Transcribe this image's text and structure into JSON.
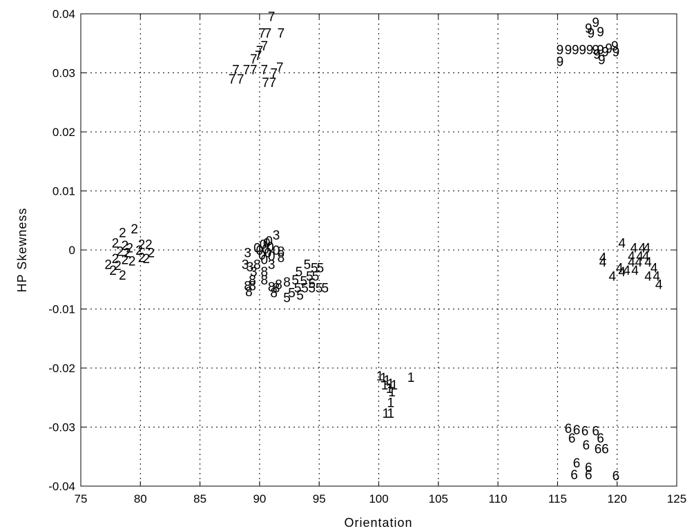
{
  "chart_data": {
    "type": "scatter",
    "title": "",
    "xlabel": "Orientation",
    "ylabel": "HP Skewness",
    "xlim": [
      75,
      125
    ],
    "ylim": [
      -0.04,
      0.04
    ],
    "xticks": [
      "75",
      "80",
      "85",
      "90",
      "95",
      "100",
      "105",
      "110",
      "115",
      "120",
      "125"
    ],
    "yticks": [
      "-0.04",
      "-0.03",
      "-0.02",
      "-0.01",
      "0",
      "0.01",
      "0.02",
      "0.03",
      "0.04"
    ],
    "grid": true,
    "marker": "class digit label",
    "series": [
      {
        "name": "0",
        "points": [
          [
            90.0,
            0.0
          ],
          [
            90.3,
            0.001
          ],
          [
            90.6,
            0.0012
          ],
          [
            90.9,
            0.0006
          ],
          [
            91.4,
            0.0
          ],
          [
            90.2,
            -0.0008
          ],
          [
            90.7,
            -0.0004
          ],
          [
            89.8,
            0.0004
          ],
          [
            90.5,
            0.0002
          ],
          [
            91.0,
            -0.001
          ],
          [
            90.4,
            -0.0016
          ],
          [
            90.8,
            0.0016
          ]
        ]
      },
      {
        "name": "1",
        "points": [
          [
            100.1,
            -0.0213
          ],
          [
            100.4,
            -0.0216
          ],
          [
            100.7,
            -0.022
          ],
          [
            101.0,
            -0.0226
          ],
          [
            100.5,
            -0.0228
          ],
          [
            100.9,
            -0.0234
          ],
          [
            101.1,
            -0.024
          ],
          [
            101.3,
            -0.0228
          ],
          [
            102.7,
            -0.0215
          ],
          [
            101.0,
            -0.0258
          ],
          [
            100.6,
            -0.0276
          ],
          [
            101.0,
            -0.0276
          ]
        ]
      },
      {
        "name": "2",
        "points": [
          [
            78.5,
            0.003
          ],
          [
            79.5,
            0.0036
          ],
          [
            77.9,
            0.0012
          ],
          [
            78.7,
            0.0008
          ],
          [
            79.1,
            0.0004
          ],
          [
            80.1,
            0.001
          ],
          [
            80.7,
            0.001
          ],
          [
            78.3,
            -0.0002
          ],
          [
            78.9,
            -0.0004
          ],
          [
            79.9,
            0.0
          ],
          [
            80.9,
            -0.0004
          ],
          [
            77.9,
            -0.0014
          ],
          [
            78.7,
            -0.0016
          ],
          [
            79.3,
            -0.0018
          ],
          [
            77.3,
            -0.0024
          ],
          [
            78.1,
            -0.0026
          ],
          [
            80.5,
            -0.0014
          ],
          [
            77.7,
            -0.0034
          ],
          [
            78.5,
            -0.0042
          ],
          [
            80.1,
            -0.0012
          ]
        ]
      },
      {
        "name": "3",
        "points": [
          [
            91.4,
            0.0026
          ],
          [
            89.0,
            -0.0004
          ],
          [
            88.8,
            -0.0024
          ],
          [
            89.2,
            -0.0028
          ],
          [
            91.0,
            -0.0024
          ],
          [
            89.5,
            -0.0036
          ]
        ]
      },
      {
        "name": "4",
        "points": [
          [
            120.4,
            0.0012
          ],
          [
            121.4,
            0.0004
          ],
          [
            122.1,
            0.0004
          ],
          [
            122.5,
            0.0004
          ],
          [
            118.8,
            -0.0012
          ],
          [
            118.8,
            -0.002
          ],
          [
            121.2,
            -0.001
          ],
          [
            121.9,
            -0.001
          ],
          [
            122.4,
            -0.001
          ],
          [
            121.2,
            -0.002
          ],
          [
            121.8,
            -0.002
          ],
          [
            122.6,
            -0.002
          ],
          [
            120.2,
            -0.003
          ],
          [
            120.8,
            -0.0034
          ],
          [
            121.5,
            -0.0034
          ],
          [
            123.1,
            -0.003
          ],
          [
            119.6,
            -0.0044
          ],
          [
            120.4,
            -0.0036
          ],
          [
            122.6,
            -0.0044
          ],
          [
            123.3,
            -0.0044
          ],
          [
            123.5,
            -0.0058
          ]
        ]
      },
      {
        "name": "5",
        "points": [
          [
            94.0,
            -0.0024
          ],
          [
            94.6,
            -0.003
          ],
          [
            95.1,
            -0.003
          ],
          [
            93.3,
            -0.0036
          ],
          [
            94.2,
            -0.0044
          ],
          [
            94.7,
            -0.0044
          ],
          [
            93.0,
            -0.005
          ],
          [
            93.7,
            -0.0052
          ],
          [
            94.4,
            -0.0056
          ],
          [
            93.2,
            -0.0064
          ],
          [
            93.8,
            -0.0064
          ],
          [
            94.4,
            -0.0064
          ],
          [
            95.0,
            -0.0064
          ],
          [
            95.5,
            -0.0064
          ],
          [
            92.7,
            -0.0072
          ],
          [
            93.4,
            -0.0076
          ],
          [
            92.3,
            -0.008
          ]
        ]
      },
      {
        "name": "6",
        "points": [
          [
            115.9,
            -0.0302
          ],
          [
            116.6,
            -0.0304
          ],
          [
            117.3,
            -0.0306
          ],
          [
            118.2,
            -0.0306
          ],
          [
            116.2,
            -0.0318
          ],
          [
            118.6,
            -0.0318
          ],
          [
            117.4,
            -0.033
          ],
          [
            118.4,
            -0.0336
          ],
          [
            119.0,
            -0.0336
          ],
          [
            116.6,
            -0.036
          ],
          [
            117.6,
            -0.0368
          ],
          [
            116.4,
            -0.038
          ],
          [
            117.6,
            -0.038
          ],
          [
            119.9,
            -0.0382
          ]
        ]
      },
      {
        "name": "7",
        "points": [
          [
            91.0,
            0.0396
          ],
          [
            90.2,
            0.0368
          ],
          [
            90.7,
            0.0368
          ],
          [
            91.8,
            0.0368
          ],
          [
            90.4,
            0.0346
          ],
          [
            90.0,
            0.0338
          ],
          [
            89.9,
            0.033
          ],
          [
            89.5,
            0.0324
          ],
          [
            88.0,
            0.0306
          ],
          [
            88.9,
            0.0306
          ],
          [
            89.5,
            0.0306
          ],
          [
            90.4,
            0.0306
          ],
          [
            91.7,
            0.031
          ],
          [
            91.2,
            0.03
          ],
          [
            87.7,
            0.029
          ],
          [
            88.4,
            0.029
          ],
          [
            90.5,
            0.0284
          ],
          [
            91.1,
            0.0284
          ]
        ]
      },
      {
        "name": "8",
        "points": [
          [
            91.8,
            -0.0002
          ],
          [
            91.8,
            -0.0012
          ],
          [
            89.8,
            -0.0024
          ],
          [
            89.4,
            -0.005
          ],
          [
            90.4,
            -0.0036
          ],
          [
            90.4,
            -0.005
          ],
          [
            91.6,
            -0.0058
          ],
          [
            92.3,
            -0.0054
          ],
          [
            89.0,
            -0.006
          ],
          [
            89.4,
            -0.006
          ],
          [
            91.0,
            -0.0062
          ],
          [
            91.4,
            -0.0064
          ],
          [
            89.1,
            -0.007
          ],
          [
            91.2,
            -0.0072
          ]
        ]
      },
      {
        "name": "9",
        "points": [
          [
            118.2,
            0.0386
          ],
          [
            117.6,
            0.0376
          ],
          [
            117.8,
            0.0368
          ],
          [
            118.6,
            0.037
          ],
          [
            115.2,
            0.034
          ],
          [
            115.9,
            0.034
          ],
          [
            116.5,
            0.034
          ],
          [
            117.1,
            0.034
          ],
          [
            117.7,
            0.034
          ],
          [
            118.2,
            0.034
          ],
          [
            118.6,
            0.034
          ],
          [
            119.3,
            0.0342
          ],
          [
            119.8,
            0.0346
          ],
          [
            119.0,
            0.0336
          ],
          [
            119.9,
            0.0336
          ],
          [
            118.3,
            0.0332
          ],
          [
            115.2,
            0.032
          ],
          [
            118.7,
            0.0323
          ]
        ]
      }
    ]
  }
}
